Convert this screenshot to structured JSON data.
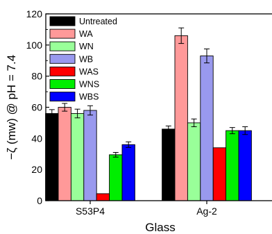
{
  "chart_data": {
    "type": "bar",
    "xlabel": "Glass",
    "ylabel": "−ζ (mw) @ pH = 7.4",
    "ylim": [
      0,
      120
    ],
    "yticks": [
      0,
      20,
      40,
      60,
      80,
      100,
      120
    ],
    "categories": [
      "S53P4",
      "Ag-2"
    ],
    "legend_position": "top-left",
    "grid": false,
    "series": [
      {
        "name": "Untreated",
        "color": "#000000",
        "values": [
          56,
          46
        ],
        "errors": [
          2.5,
          2.0
        ]
      },
      {
        "name": "WA",
        "color": "#ff9999",
        "values": [
          60,
          106
        ],
        "errors": [
          2.5,
          5.0
        ]
      },
      {
        "name": "WN",
        "color": "#99ff99",
        "values": [
          56,
          50
        ],
        "errors": [
          2.8,
          2.5
        ]
      },
      {
        "name": "WB",
        "color": "#9999ee",
        "values": [
          58,
          93
        ],
        "errors": [
          3.0,
          4.5
        ]
      },
      {
        "name": "WAS",
        "color": "#ff0000",
        "values": [
          4.5,
          34
        ],
        "errors": [
          0,
          0
        ]
      },
      {
        "name": "WNS",
        "color": "#00ee00",
        "values": [
          29.5,
          45
        ],
        "errors": [
          1.5,
          2.0
        ]
      },
      {
        "name": "WBS",
        "color": "#0000ff",
        "values": [
          36,
          45
        ],
        "errors": [
          1.8,
          2.5
        ]
      }
    ]
  }
}
